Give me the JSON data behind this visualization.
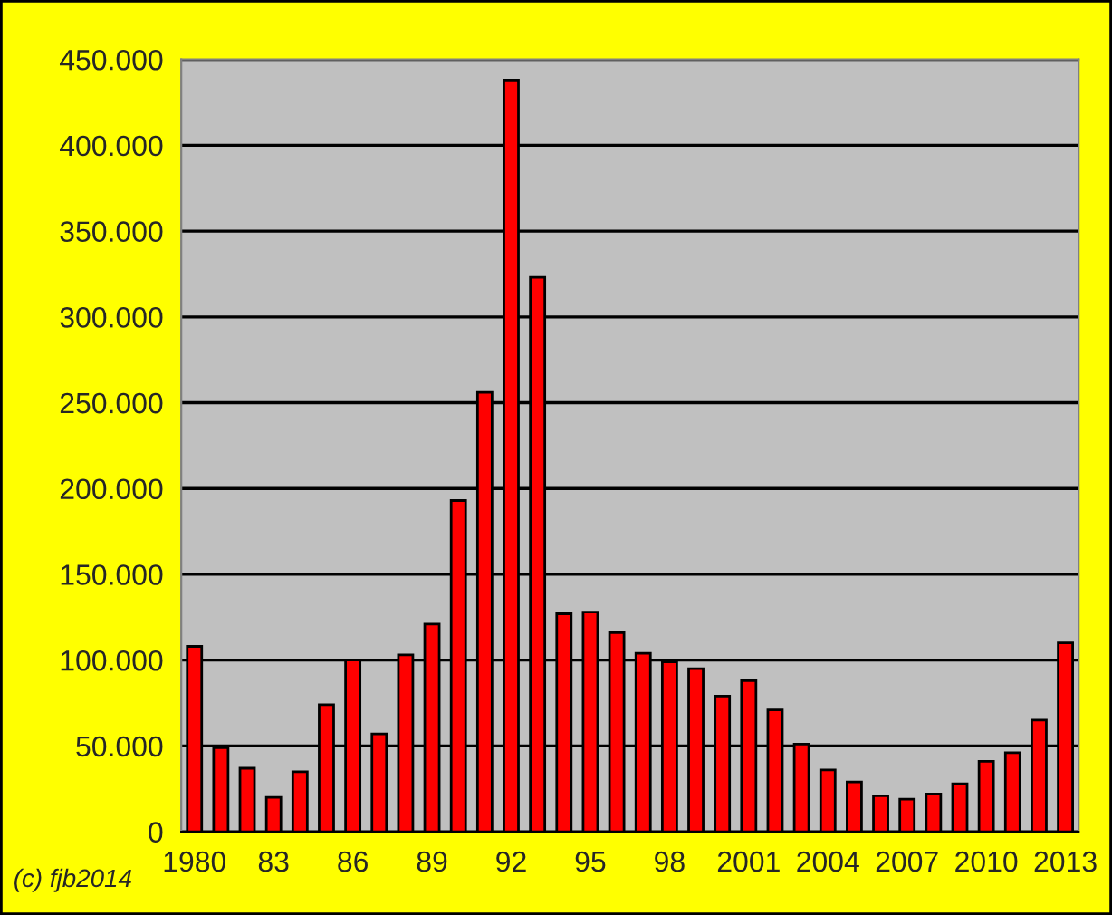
{
  "chart_data": {
    "type": "bar",
    "categories": [
      "1980",
      null,
      null,
      "83",
      null,
      null,
      "86",
      null,
      null,
      "89",
      null,
      null,
      "92",
      null,
      null,
      "95",
      null,
      null,
      "98",
      null,
      null,
      "2001",
      null,
      null,
      "2004",
      null,
      null,
      "2007",
      null,
      null,
      "2010",
      null,
      null,
      "2013"
    ],
    "values": [
      108000,
      49000,
      37000,
      20000,
      35000,
      74000,
      100000,
      57000,
      103000,
      121000,
      193000,
      256000,
      438000,
      323000,
      127000,
      128000,
      116000,
      104000,
      99000,
      95000,
      79000,
      88000,
      71000,
      51000,
      36000,
      29000,
      21000,
      19000,
      22000,
      28000,
      41000,
      46000,
      65000,
      110000
    ],
    "color": "#ff0000",
    "ylim": [
      0,
      450000
    ],
    "yticks": [
      0,
      {
        "value": 50000,
        "label": "50.000"
      },
      {
        "value": 100000,
        "label": "100.000"
      },
      {
        "value": 150000,
        "label": "150.000"
      },
      {
        "value": 200000,
        "label": "200.000"
      },
      {
        "value": 250000,
        "label": "250.000"
      },
      {
        "value": 300000,
        "label": "300.000"
      },
      {
        "value": 350000,
        "label": "350.000"
      },
      {
        "value": 400000,
        "label": "400.000"
      },
      {
        "value": 450000,
        "label": "450.000"
      }
    ],
    "grid": "y",
    "annotations": [
      "(c) fjb2014"
    ]
  }
}
